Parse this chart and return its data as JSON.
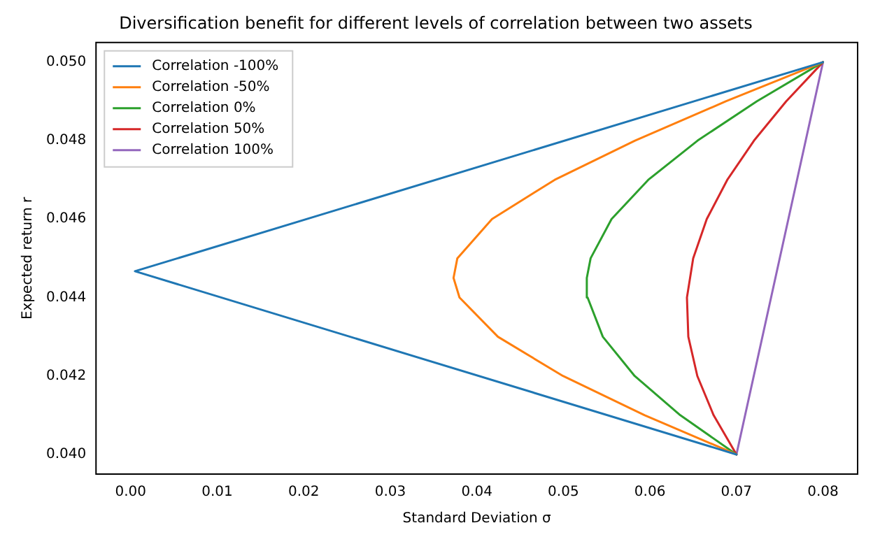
{
  "chart_data": {
    "type": "line",
    "title": "Diversification benefit for different levels of correlation between two assets",
    "xlabel": "Standard Deviation σ",
    "ylabel": "Expected return r",
    "xlim": [
      -0.004,
      0.084
    ],
    "ylim": [
      0.0395,
      0.0505
    ],
    "xticks": [
      {
        "value": 0,
        "label": "0.00"
      },
      {
        "value": 0.01,
        "label": "0.01"
      },
      {
        "value": 0.02,
        "label": "0.02"
      },
      {
        "value": 0.03,
        "label": "0.03"
      },
      {
        "value": 0.04,
        "label": "0.04"
      },
      {
        "value": 0.05,
        "label": "0.05"
      },
      {
        "value": 0.06,
        "label": "0.06"
      },
      {
        "value": 0.07,
        "label": "0.07"
      },
      {
        "value": 0.08,
        "label": "0.08"
      }
    ],
    "yticks": [
      {
        "value": 0.04,
        "label": "0.040"
      },
      {
        "value": 0.042,
        "label": "0.042"
      },
      {
        "value": 0.044,
        "label": "0.044"
      },
      {
        "value": 0.046,
        "label": "0.046"
      },
      {
        "value": 0.048,
        "label": "0.048"
      },
      {
        "value": 0.05,
        "label": "0.050"
      }
    ],
    "grid": false,
    "legend": "top left",
    "marker": "none",
    "line_style": "solid",
    "series": [
      {
        "name": "Correlation -100%",
        "color": "#1f77b4",
        "x": [
          0.07,
          0.0005,
          0.08
        ],
        "values": [
          0.04,
          0.04467,
          0.05
        ]
      },
      {
        "name": "Correlation -50%",
        "color": "#ff7f0e",
        "x": [
          0.07,
          0.0594,
          0.04996,
          0.04244,
          0.038,
          0.03731,
          0.03775,
          0.04176,
          0.049,
          0.05828,
          0.06877,
          0.08
        ],
        "values": [
          0.04,
          0.041,
          0.042,
          0.043,
          0.044,
          0.0445,
          0.045,
          0.046,
          0.047,
          0.048,
          0.049,
          0.05
        ]
      },
      {
        "name": "Correlation 0%",
        "color": "#2ca02c",
        "x": [
          0.07,
          0.06351,
          0.05824,
          0.05456,
          0.0528,
          0.05271,
          0.05315,
          0.05557,
          0.05981,
          0.06551,
          0.07234,
          0.08
        ],
        "values": [
          0.04,
          0.041,
          0.042,
          0.043,
          0.044,
          0.0445,
          0.045,
          0.046,
          0.047,
          0.048,
          0.049,
          0.05
        ]
      },
      {
        "name": "Correlation 50%",
        "color": "#d62728",
        "x": [
          0.07,
          0.06736,
          0.06548,
          0.06444,
          0.06428,
          0.065,
          0.06657,
          0.06894,
          0.07203,
          0.07574,
          0.08
        ],
        "values": [
          0.04,
          0.041,
          0.042,
          0.043,
          0.044,
          0.045,
          0.046,
          0.047,
          0.048,
          0.049,
          0.05
        ]
      },
      {
        "name": "Correlation 100%",
        "color": "#9467bd",
        "x": [
          0.07,
          0.08
        ],
        "values": [
          0.04,
          0.05
        ]
      }
    ]
  }
}
